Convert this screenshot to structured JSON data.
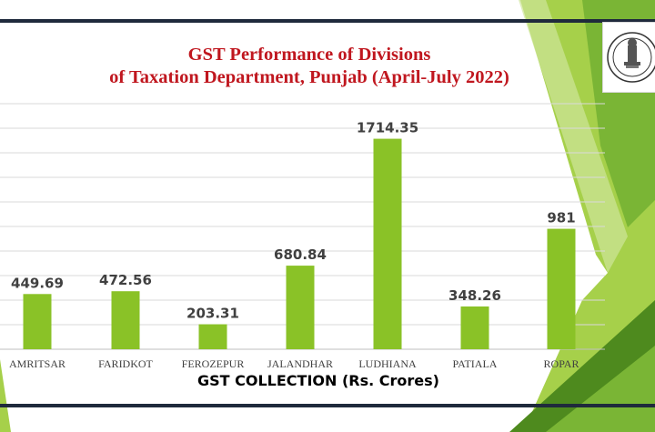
{
  "colors": {
    "bar": "#8ac227",
    "title": "#c0171f",
    "frame": "#1f2a3c",
    "green_dark": "#4e8a1e",
    "green_mid": "#7ab535",
    "green_light": "#a6d04a",
    "green_pale": "#cfe59a"
  },
  "logo": {
    "icon": "emblem-seal-icon",
    "caption": "GOVT. OF PUNJAB"
  },
  "chart_data": {
    "type": "bar",
    "title": "GST Performance of Divisions of Taxation Department, Punjab (April-July 2022)",
    "title_lines": [
      "GST Performance of Divisions",
      "of Taxation Department, Punjab (April-July 2022)"
    ],
    "xlabel": "GST COLLECTION (Rs. Crores)",
    "ylabel": "",
    "categories": [
      "AMRITSAR",
      "FARIDKOT",
      "FEROZEPUR",
      "JALANDHAR",
      "LUDHIANA",
      "PATIALA",
      "ROPAR"
    ],
    "values": [
      449.69,
      472.56,
      203.31,
      680.84,
      1714.35,
      348.26,
      981
    ],
    "value_labels": [
      "449.69",
      "472.56",
      "203.31",
      "680.84",
      "1714.35",
      "348.26",
      "981"
    ],
    "ylim": [
      0,
      2000
    ],
    "grid": true,
    "legend": "none"
  }
}
